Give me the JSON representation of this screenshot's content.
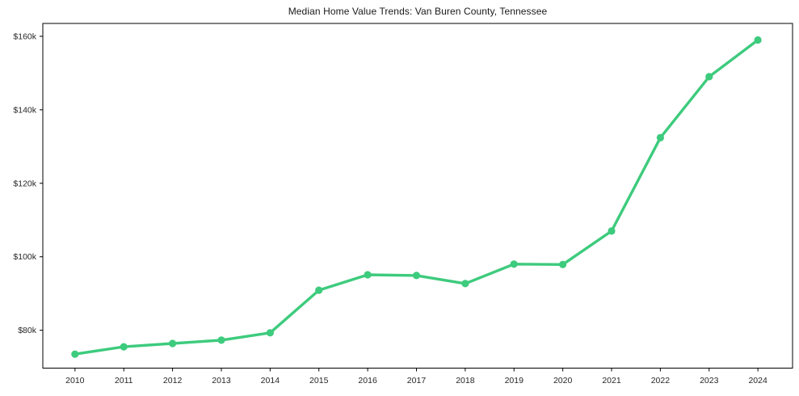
{
  "chart_data": {
    "type": "line",
    "title": "Median Home Value Trends: Van Buren County, Tennessee",
    "x": [
      2010,
      2011,
      2012,
      2013,
      2014,
      2015,
      2016,
      2017,
      2018,
      2019,
      2020,
      2021,
      2022,
      2023,
      2024
    ],
    "values": [
      73500,
      75500,
      76400,
      77300,
      79300,
      90900,
      95100,
      94900,
      92700,
      98000,
      97900,
      107000,
      132400,
      149000,
      159000
    ],
    "x_tick_labels": [
      "2010",
      "2011",
      "2012",
      "2013",
      "2014",
      "2015",
      "2016",
      "2017",
      "2018",
      "2019",
      "2020",
      "2021",
      "2022",
      "2023",
      "2024"
    ],
    "y_ticks": [
      {
        "value": 80000,
        "label": "$80k"
      },
      {
        "value": 100000,
        "label": "$100k"
      },
      {
        "value": 120000,
        "label": "$120k"
      },
      {
        "value": 140000,
        "label": "$140k"
      },
      {
        "value": 160000,
        "label": "$160k"
      }
    ],
    "xlim": [
      2009.34,
      2024.71
    ],
    "ylim": [
      69700,
      163500
    ],
    "grid": false,
    "legend": false,
    "marker": "circle",
    "line_color": "#3dcb7d",
    "marker_color": "#3dcb7d",
    "axis_color": "#000000",
    "tick_label_color": "#262626",
    "title_color": "#1a1a1a",
    "background": "#ffffff"
  }
}
